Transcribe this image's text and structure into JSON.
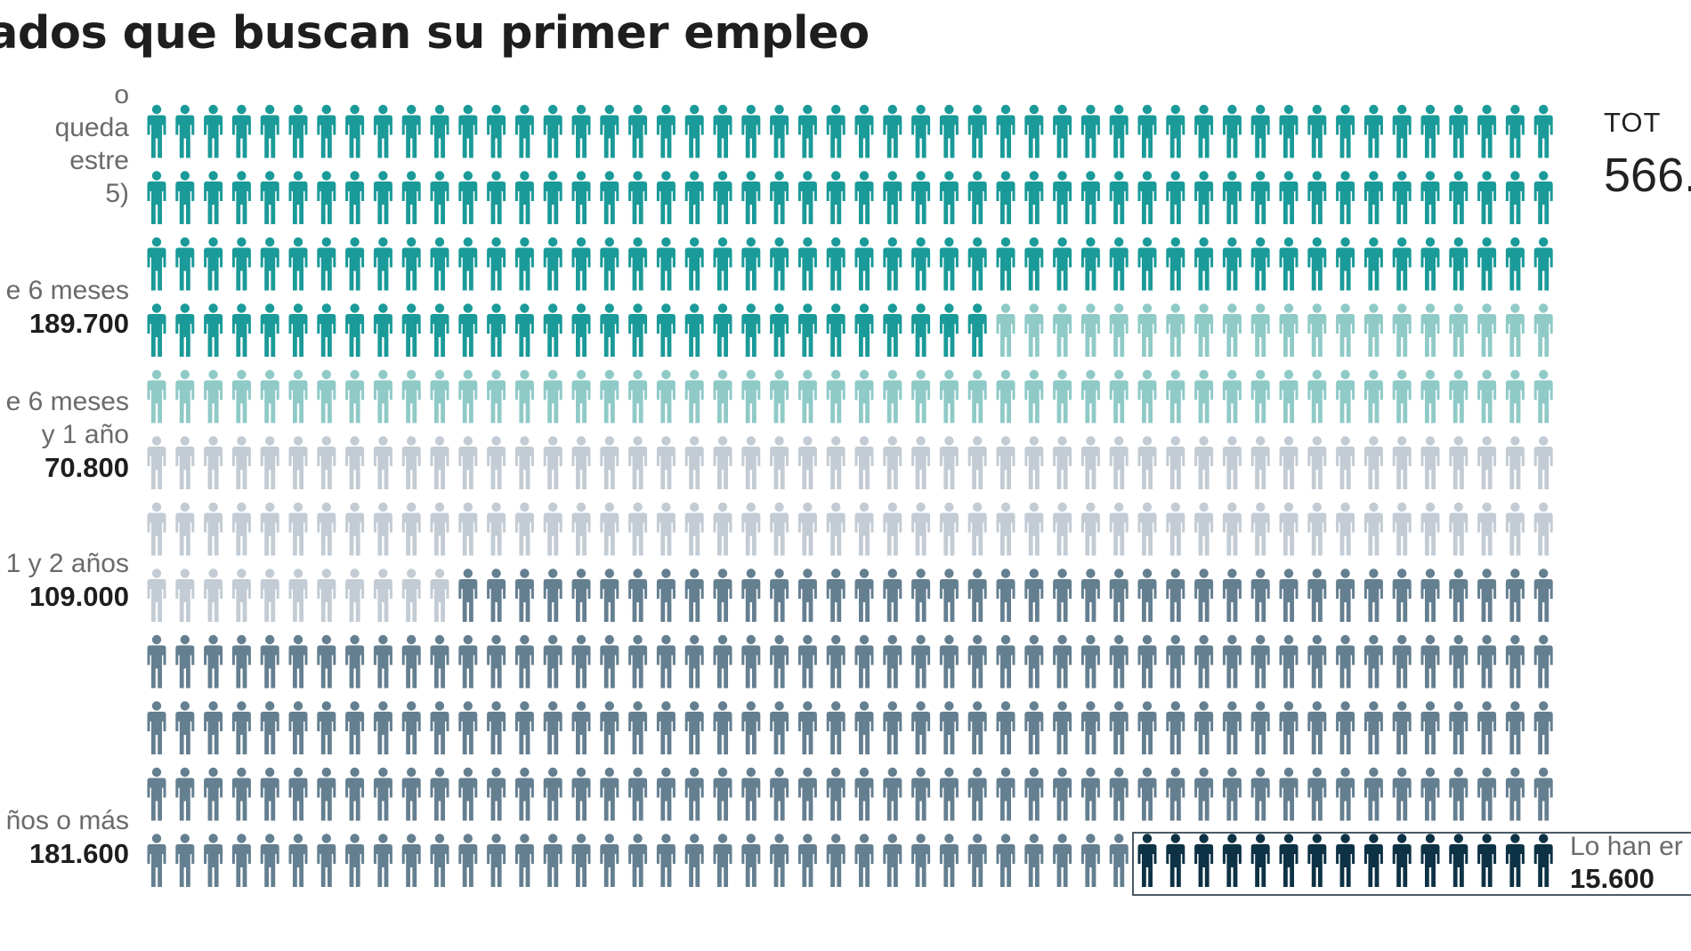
{
  "title": "ados que buscan su primer empleo",
  "total": {
    "label": "TOT",
    "value": "566."
  },
  "categories": [
    {
      "lines": [
        "o",
        "queda",
        "estre",
        "5)"
      ]
    },
    {
      "lines": [
        "e 6 meses"
      ],
      "value": "189.700"
    },
    {
      "lines": [
        "e 6 meses",
        "y 1 año"
      ],
      "value": "70.800"
    },
    {
      "lines": [
        "1 y 2 años"
      ],
      "value": "109.000"
    },
    {
      "lines": [
        "ños o más"
      ],
      "value": "181.600"
    }
  ],
  "found": {
    "label": "Lo han er",
    "value": "15.600"
  },
  "chart_data": {
    "type": "waffle (pictogram)",
    "title": "ados que buscan su primer empleo",
    "grid": {
      "rows": 12,
      "columns": 50
    },
    "series": [
      {
        "name": "e 6 meses",
        "value": 189.7,
        "icons": 180,
        "color": "#1a9a98"
      },
      {
        "name": "e 6 meses y 1 año",
        "value": 70.8,
        "icons": 70,
        "color": "#8fcac7"
      },
      {
        "name": "1 y 2 años",
        "value": 109.0,
        "icons": 111,
        "color": "#c3ccd4"
      },
      {
        "name": "ños o más",
        "value": 181.6,
        "icons": 224,
        "color": "#647f90"
      },
      {
        "name": "Lo han er",
        "value": 15.6,
        "icons": 15,
        "color": "#0e3245"
      }
    ],
    "total": "566."
  }
}
